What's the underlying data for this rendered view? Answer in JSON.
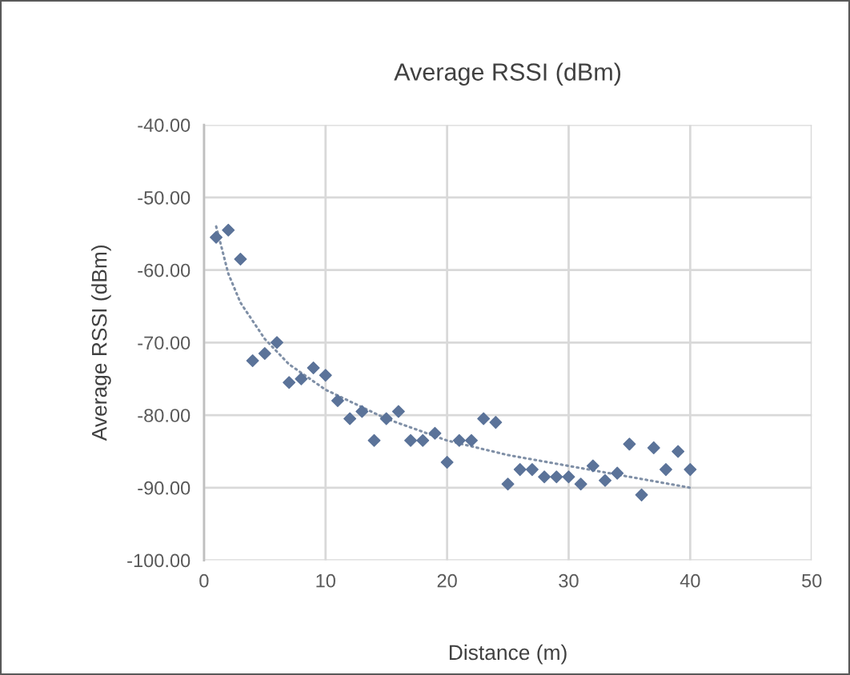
{
  "chart_data": {
    "type": "scatter",
    "title": "Average RSSI (dBm)",
    "xlabel": "Distance (m)",
    "ylabel": "Average RSSI (dBm)",
    "xlim": [
      0,
      50
    ],
    "xticks": [
      0,
      10,
      20,
      30,
      40,
      50
    ],
    "ylim": [
      -100,
      -40
    ],
    "yticks": [
      {
        "value": -100,
        "label": "-100.00"
      },
      {
        "value": -90,
        "label": "-90.00"
      },
      {
        "value": -80,
        "label": "-80.00"
      },
      {
        "value": -70,
        "label": "-70.00"
      },
      {
        "value": -60,
        "label": "-60.00"
      },
      {
        "value": -50,
        "label": "-50.00"
      },
      {
        "value": -40,
        "label": "-40.00"
      }
    ],
    "grid": true,
    "series": [
      {
        "color": "#5b7399",
        "marker": "diamond",
        "x": [
          1,
          2,
          3,
          4,
          5,
          6,
          7,
          8,
          9,
          10,
          11,
          12,
          13,
          14,
          15,
          16,
          17,
          18,
          19,
          20,
          21,
          22,
          23,
          24,
          25,
          26,
          27,
          28,
          29,
          30,
          31,
          32,
          33,
          34,
          35,
          36,
          37,
          38,
          39,
          40
        ],
        "values": [
          -55.5,
          -54.5,
          -58.5,
          -72.5,
          -71.5,
          -70,
          -75.5,
          -75,
          -73.5,
          -74.5,
          -78,
          -80.5,
          -79.5,
          -83.5,
          -80.5,
          -79.5,
          -83.5,
          -83.5,
          -82.5,
          -86.5,
          -83.5,
          -83.5,
          -80.5,
          -81,
          -89.5,
          -87.5,
          -87.5,
          -88.5,
          -88.5,
          -88.5,
          -89.5,
          -87,
          -89,
          -88,
          -84,
          -91,
          -84.5,
          -87.5,
          -85,
          -87.5
        ]
      },
      {
        "type": "line",
        "color": "#7f8fa6",
        "marker": "none",
        "line_style": "dotted",
        "x": [
          1,
          2,
          3,
          5,
          7,
          10,
          15,
          20,
          25,
          30,
          35,
          40
        ],
        "values": [
          -54,
          -60.5,
          -64.5,
          -69.5,
          -73,
          -76.5,
          -80.5,
          -83.5,
          -85.5,
          -87,
          -88.5,
          -90
        ]
      }
    ]
  }
}
